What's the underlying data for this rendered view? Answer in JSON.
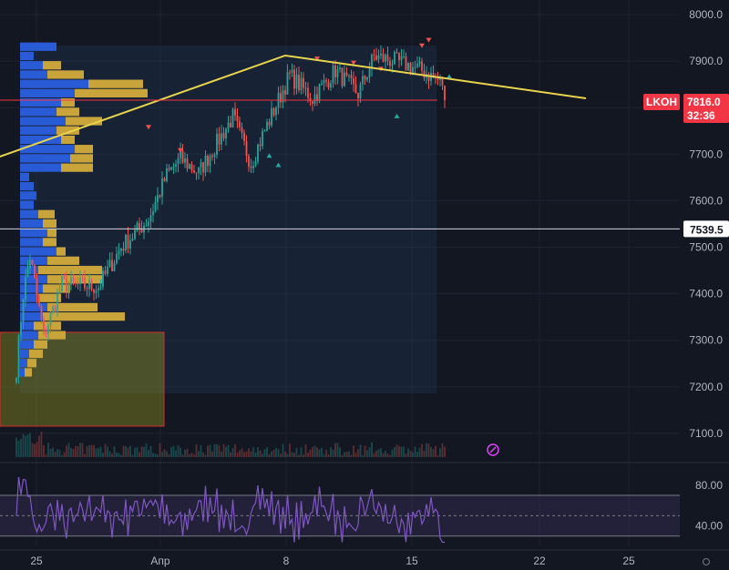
{
  "colors": {
    "background": "#131722",
    "up": "#26a69a",
    "down": "#ef5350",
    "trendline": "#e8d44d",
    "volume_profile_blue": "#2a5bd7",
    "volume_profile_gold": "#c9a43a",
    "rsi_line": "#7e57c2",
    "price_tag": "#f23645",
    "level_tag": "#ffffff"
  },
  "chart_data": {
    "type": "candlestick",
    "symbol": "LKOH",
    "last_price": "7816.0",
    "countdown": "32:36",
    "level_price": "7539.5",
    "x_tick_labels": [
      "25",
      "Апр",
      "8",
      "15",
      "22",
      "25"
    ],
    "y_tick_labels": [
      "8000.0",
      "7900.0",
      "7800.0",
      "7700.0",
      "7600.0",
      "7500.0",
      "7400.0",
      "7300.0",
      "7200.0",
      "7100.0"
    ],
    "ylim": [
      7060,
      8020
    ],
    "rsi": {
      "tick_labels": [
        "80.00",
        "40.00"
      ],
      "ylim": [
        20,
        95
      ],
      "upper_band": 70,
      "lower_band": 30,
      "mid": 50
    },
    "trendline": [
      {
        "bar": -10,
        "price": 7690
      },
      {
        "bar": 118,
        "price": 7912
      },
      {
        "bar": 250,
        "price": 7820
      }
    ],
    "key_points": [
      {
        "bar": 0,
        "price": 7240
      },
      {
        "bar": 3,
        "price": 7400
      },
      {
        "bar": 6,
        "price": 7480
      },
      {
        "bar": 12,
        "price": 7310
      },
      {
        "bar": 20,
        "price": 7420
      },
      {
        "bar": 36,
        "price": 7415
      },
      {
        "bar": 46,
        "price": 7500
      },
      {
        "bar": 58,
        "price": 7560
      },
      {
        "bar": 66,
        "price": 7655
      },
      {
        "bar": 72,
        "price": 7690
      },
      {
        "bar": 80,
        "price": 7660
      },
      {
        "bar": 95,
        "price": 7780
      },
      {
        "bar": 103,
        "price": 7680
      },
      {
        "bar": 108,
        "price": 7740
      },
      {
        "bar": 120,
        "price": 7870
      },
      {
        "bar": 130,
        "price": 7820
      },
      {
        "bar": 140,
        "price": 7880
      },
      {
        "bar": 150,
        "price": 7830
      },
      {
        "bar": 157,
        "price": 7910
      },
      {
        "bar": 166,
        "price": 7900
      },
      {
        "bar": 178,
        "price": 7880
      },
      {
        "bar": 188,
        "price": 7850
      }
    ]
  }
}
